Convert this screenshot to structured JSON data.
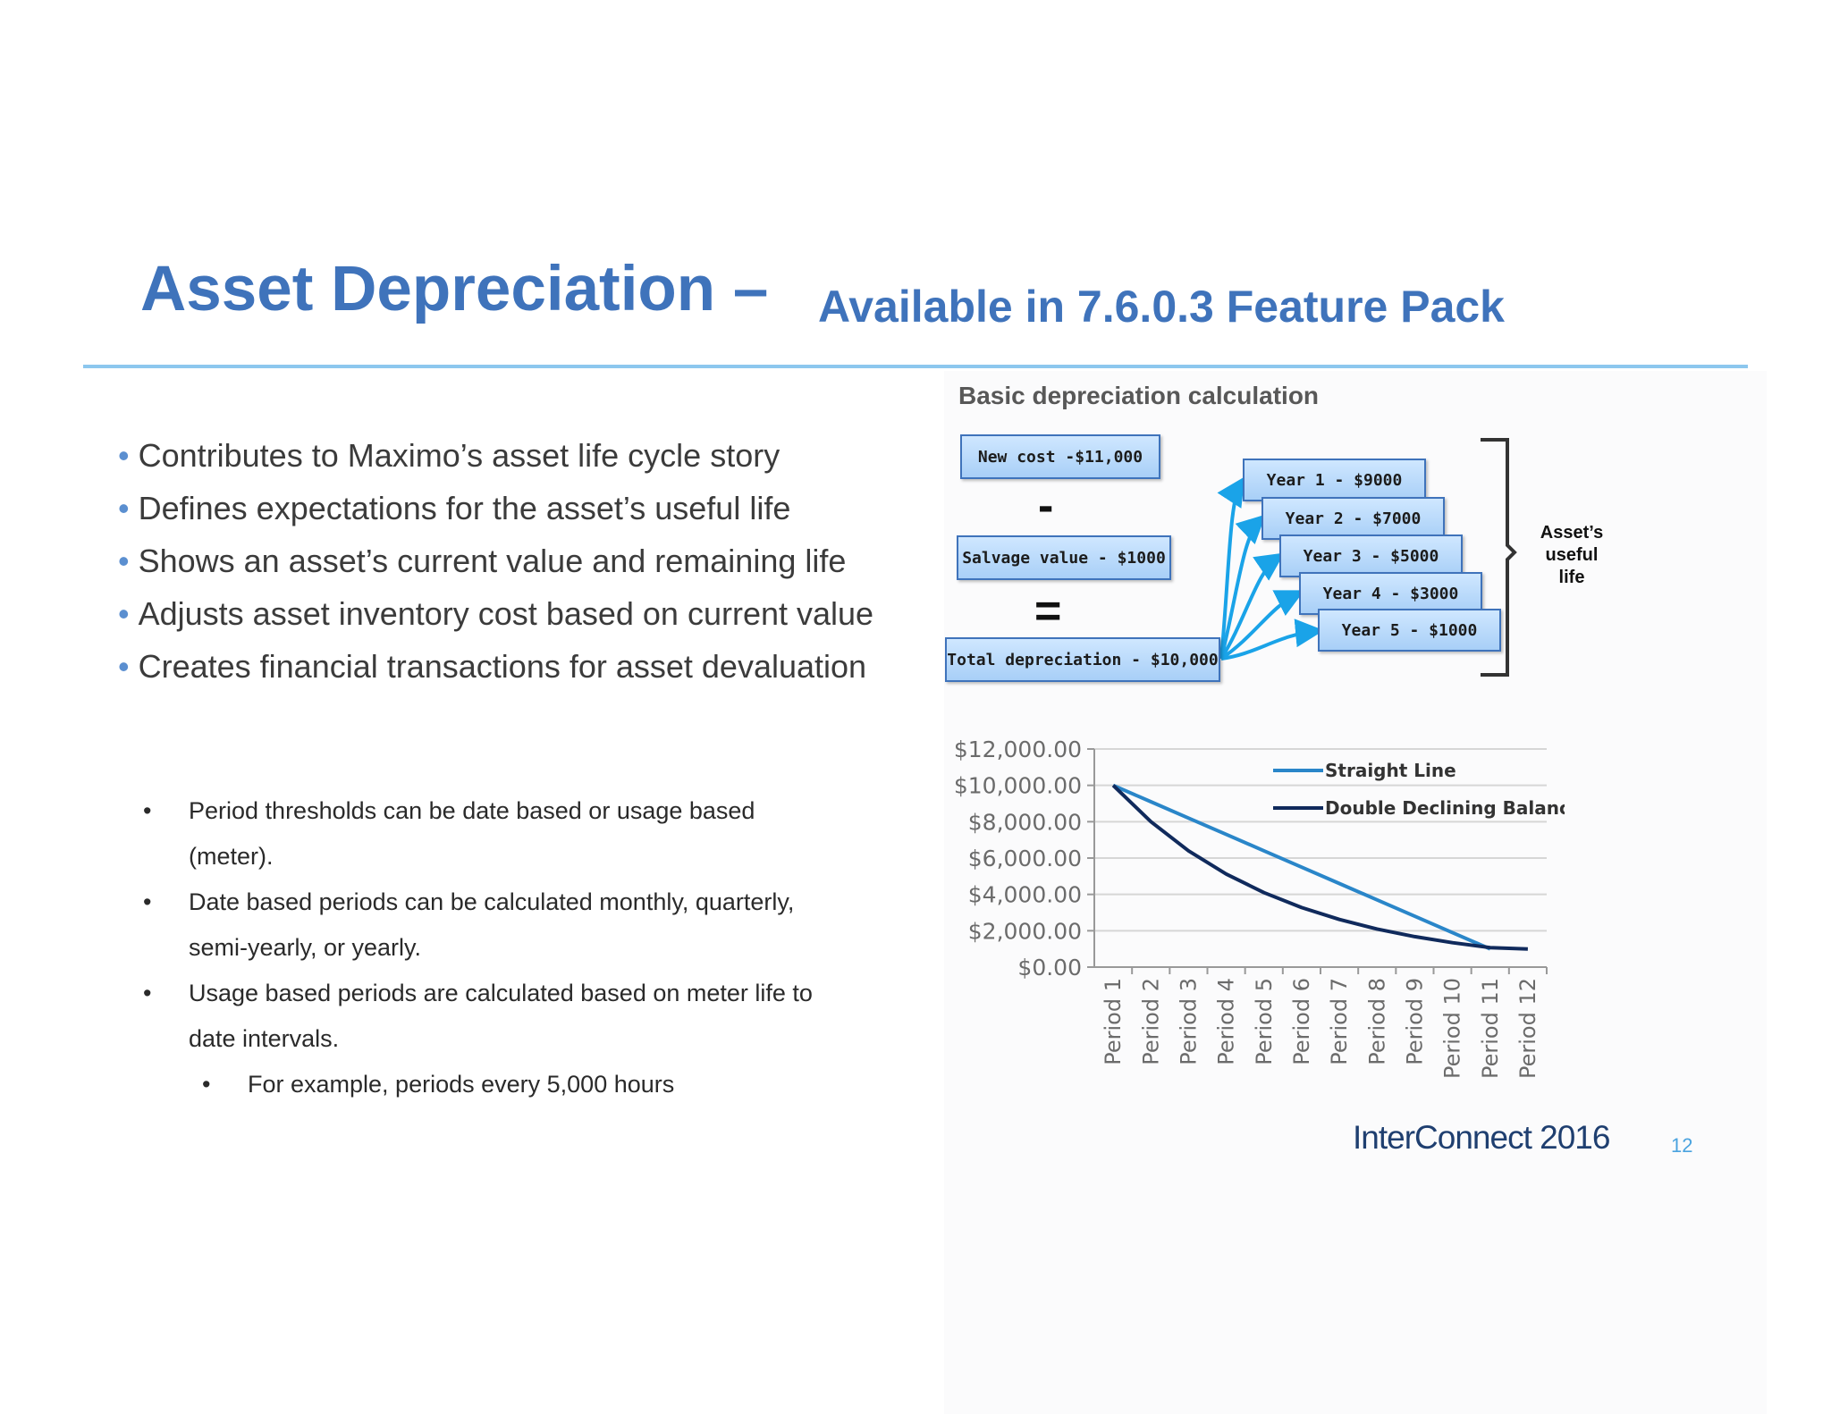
{
  "slide": {
    "title": "Asset Depreciation –",
    "subtitle": "Available in 7.6.0.3 Feature Pack",
    "bullets": [
      "Contributes to Maximo’s asset life cycle story",
      "Defines expectations for the asset’s useful life",
      "Shows an asset’s current value and remaining life",
      "Adjusts asset inventory cost based on current value",
      "Creates financial transactions for asset devaluation"
    ],
    "sub_bullets": [
      {
        "line1": "Period thresholds can be date based or usage based",
        "line2": "(meter)."
      },
      {
        "line1": "Date based periods can be calculated monthly, quarterly,",
        "line2": "semi-yearly, or yearly."
      },
      {
        "line1": "Usage based periods are calculated based on meter life to",
        "line2": "date intervals."
      }
    ],
    "sub_sub_bullet": "For example, periods every 5,000 hours",
    "bullet_char": "•",
    "footer": "InterConnect 2016",
    "page_number": "12"
  },
  "calculation": {
    "title": "Basic depreciation calculation",
    "new_cost": "New cost -$11,000",
    "minus": "-",
    "salvage": "Salvage value - $1000",
    "equals": "=",
    "total": "Total depreciation - $10,000",
    "years": [
      "Year 1 - $9000",
      "Year 2 - $7000",
      "Year 3 - $5000",
      "Year 4 - $3000",
      "Year 5 - $1000"
    ],
    "bracket_label_lines": [
      "Asset’s",
      "useful",
      "life"
    ],
    "arrow_color": "#1aa3e8",
    "bracket_color": "#333333"
  },
  "chart_data": {
    "type": "line",
    "categories": [
      "Period 1",
      "Period 2",
      "Period 3",
      "Period 4",
      "Period 5",
      "Period 6",
      "Period 7",
      "Period 8",
      "Period 9",
      "Period 10",
      "Period 11",
      "Period 12"
    ],
    "series": [
      {
        "name": "Straight Line",
        "color": "#2a86c9",
        "values": [
          10000,
          9100,
          8200,
          7300,
          6400,
          5500,
          4600,
          3700,
          2800,
          1900,
          1000,
          null
        ]
      },
      {
        "name": "Double Declining Balance",
        "color": "#102a5c",
        "values": [
          10000,
          8000,
          6400,
          5120,
          4096,
          3277,
          2621,
          2097,
          1678,
          1342,
          1074,
          1000
        ]
      }
    ],
    "yticks": [
      "$12,000.00",
      "$10,000.00",
      "$8,000.00",
      "$6,000.00",
      "$4,000.00",
      "$2,000.00",
      "$0.00"
    ],
    "ylim": [
      0,
      12000
    ],
    "grid": true,
    "legend": "top-right",
    "xlabel": "",
    "ylabel": ""
  }
}
